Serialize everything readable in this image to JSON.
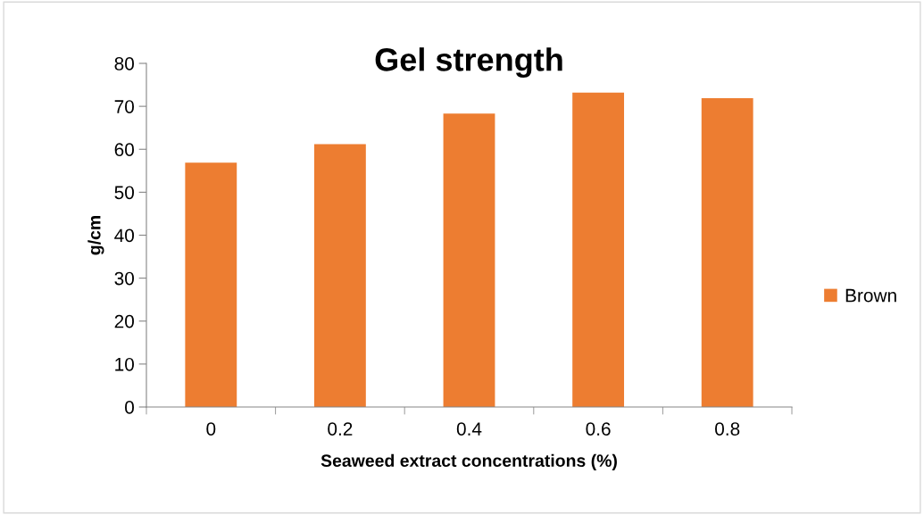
{
  "chart_data": {
    "type": "bar",
    "title": "Gel strength",
    "xlabel": "Seaweed extract concentrations (%)",
    "ylabel": "g/cm",
    "categories": [
      "0",
      "0.2",
      "0.4",
      "0.6",
      "0.8"
    ],
    "series": [
      {
        "name": "Brown",
        "color": "#ed7d31",
        "values": [
          56.9,
          61.2,
          68.3,
          73.2,
          71.9
        ]
      }
    ],
    "ylim": [
      0,
      80
    ],
    "yticks": [
      0,
      10,
      20,
      30,
      40,
      50,
      60,
      70,
      80
    ],
    "grid": false,
    "legend": "right"
  }
}
